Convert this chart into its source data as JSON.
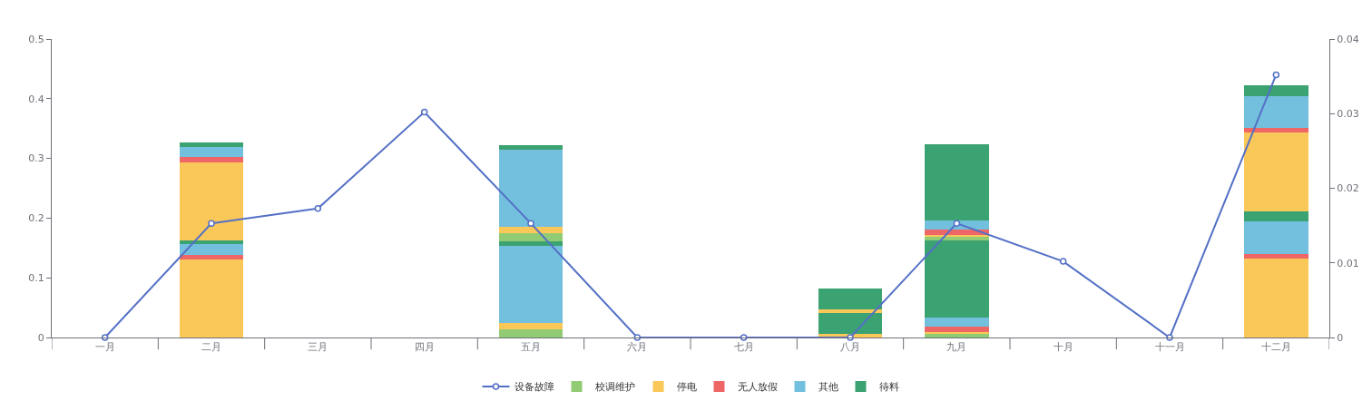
{
  "chart_data": {
    "type": "bar",
    "stacked": true,
    "categories": [
      "一月",
      "二月",
      "三月",
      "四月",
      "五月",
      "六月",
      "七月",
      "八月",
      "九月",
      "十月",
      "十一月",
      "十二月"
    ],
    "series": [
      {
        "name": "设备故障",
        "type": "line",
        "axis": "y2",
        "color": "#5470c6",
        "marker": "circle",
        "values": [
          0,
          0.0153,
          0.0173,
          0.0302,
          0.0153,
          0,
          0,
          0,
          0.0153,
          0.0102,
          0,
          0.0352
        ]
      },
      {
        "name": "校调维护",
        "color": "#91cc75",
        "values": [
          0,
          0,
          0,
          0,
          0.014,
          0,
          0,
          0,
          0.006,
          0,
          0,
          0
        ]
      },
      {
        "name": "停电",
        "color": "#fac858",
        "values": [
          0,
          0.131,
          0,
          0,
          0.01,
          0,
          0,
          0.006,
          0.003,
          0,
          0,
          0.132
        ]
      },
      {
        "name": "无人放假",
        "color": "#ee6666",
        "values": [
          0,
          0.008,
          0,
          0,
          0,
          0,
          0,
          0,
          0.01,
          0,
          0,
          0.008
        ]
      },
      {
        "name": "其他",
        "color": "#73c0de",
        "values": [
          0,
          0.017,
          0,
          0,
          0.13,
          0,
          0,
          0,
          0.015,
          0,
          0,
          0.054
        ]
      },
      {
        "name": "待料",
        "color": "#3ba272",
        "values": [
          0,
          0.007,
          0,
          0,
          0.007,
          0,
          0,
          0.035,
          0.128,
          0,
          0,
          0.017
        ]
      },
      {
        "color": "#91cc75",
        "values": [
          0,
          0,
          0,
          0,
          0.014,
          0,
          0,
          0,
          0.006,
          0,
          0,
          0
        ]
      },
      {
        "color": "#fac858",
        "values": [
          0,
          0.131,
          0,
          0,
          0.01,
          0,
          0,
          0.006,
          0.003,
          0,
          0,
          0.132
        ]
      },
      {
        "color": "#ee6666",
        "values": [
          0,
          0.008,
          0,
          0,
          0,
          0,
          0,
          0,
          0.01,
          0,
          0,
          0.008
        ]
      },
      {
        "color": "#73c0de",
        "values": [
          0,
          0.017,
          0,
          0,
          0.13,
          0,
          0,
          0,
          0.015,
          0,
          0,
          0.054
        ]
      },
      {
        "color": "#3ba272",
        "values": [
          0,
          0.007,
          0,
          0,
          0.007,
          0,
          0,
          0.035,
          0.128,
          0,
          0,
          0.017
        ]
      }
    ],
    "ylim": [
      0,
      0.5
    ],
    "yticks": [
      0,
      0.1,
      0.2,
      0.3,
      0.4,
      0.5
    ],
    "y2lim": [
      0,
      0.04
    ],
    "y2ticks": [
      0,
      0.01,
      0.02,
      0.03,
      0.04
    ],
    "grid": false,
    "legend": "bottom"
  }
}
